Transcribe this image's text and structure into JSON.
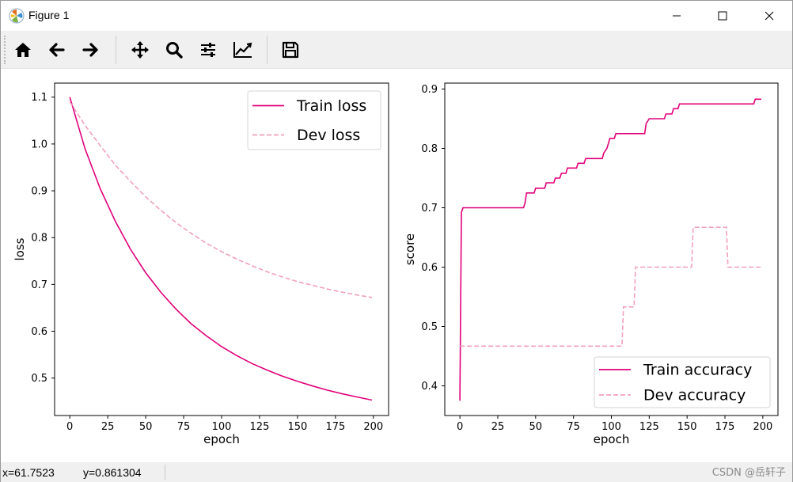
{
  "window": {
    "title": "Figure 1",
    "icons": [
      "app-icon",
      "minimize-icon",
      "maximize-icon",
      "close-icon"
    ]
  },
  "toolbar": {
    "tools": [
      {
        "name": "home",
        "icon": "home-icon"
      },
      {
        "name": "back",
        "icon": "arrow-left-icon"
      },
      {
        "name": "forward",
        "icon": "arrow-right-icon"
      },
      {
        "name": "pan",
        "icon": "move-icon"
      },
      {
        "name": "zoom",
        "icon": "magnifier-icon"
      },
      {
        "name": "subplots",
        "icon": "sliders-icon"
      },
      {
        "name": "axes",
        "icon": "line-chart-icon"
      },
      {
        "name": "save",
        "icon": "floppy-disk-icon"
      }
    ]
  },
  "status": {
    "x_text": "x=61.7523",
    "y_text": "y=0.861304",
    "watermark": "CSDN @岳轩子"
  },
  "colors": {
    "train": "#e0007a",
    "dev": "#f0a0bc",
    "toolbar_bg": "#f0f0f0"
  },
  "chart_data": [
    {
      "type": "line",
      "title": "",
      "xlabel": "epoch",
      "ylabel": "loss",
      "xlim": [
        -10,
        210
      ],
      "ylim": [
        0.42,
        1.13
      ],
      "xticks": [
        0,
        25,
        50,
        75,
        100,
        125,
        150,
        175,
        200
      ],
      "yticks": [
        0.5,
        0.6,
        0.7,
        0.8,
        0.9,
        1.0,
        1.1
      ],
      "ytick_labels": [
        "0.5",
        "0.6",
        "0.7",
        "0.8",
        "0.9",
        "1.0",
        "1.1"
      ],
      "grid": false,
      "legend": "top-right",
      "x": [
        0,
        10,
        20,
        30,
        40,
        50,
        60,
        70,
        80,
        90,
        100,
        110,
        120,
        130,
        140,
        150,
        160,
        170,
        180,
        190,
        199
      ],
      "series": [
        {
          "name": "Train loss",
          "style": "solid",
          "color": "#e0007a",
          "values": [
            1.1,
            0.99,
            0.905,
            0.835,
            0.775,
            0.725,
            0.683,
            0.647,
            0.616,
            0.59,
            0.567,
            0.548,
            0.531,
            0.517,
            0.504,
            0.493,
            0.483,
            0.474,
            0.466,
            0.459,
            0.453
          ]
        },
        {
          "name": "Dev loss",
          "style": "dashed",
          "color": "#f0a0bc",
          "values": [
            1.09,
            1.04,
            0.997,
            0.955,
            0.92,
            0.887,
            0.858,
            0.832,
            0.809,
            0.788,
            0.77,
            0.754,
            0.74,
            0.727,
            0.716,
            0.706,
            0.698,
            0.69,
            0.683,
            0.677,
            0.672
          ]
        }
      ]
    },
    {
      "type": "line",
      "title": "",
      "xlabel": "epoch",
      "ylabel": "score",
      "xlim": [
        -10,
        210
      ],
      "ylim": [
        0.35,
        0.91
      ],
      "xticks": [
        0,
        25,
        50,
        75,
        100,
        125,
        150,
        175,
        200
      ],
      "yticks": [
        0.4,
        0.5,
        0.6,
        0.7,
        0.8,
        0.9
      ],
      "ytick_labels": [
        "0.4",
        "0.5",
        "0.6",
        "0.7",
        "0.8",
        "0.9"
      ],
      "grid": false,
      "legend": "bottom-right",
      "series": [
        {
          "name": "Train accuracy",
          "style": "solid",
          "color": "#e0007a",
          "points": [
            [
              0,
              0.375
            ],
            [
              1,
              0.692
            ],
            [
              2,
              0.7
            ],
            [
              42,
              0.7
            ],
            [
              43,
              0.708
            ],
            [
              44,
              0.725
            ],
            [
              49,
              0.725
            ],
            [
              50,
              0.733
            ],
            [
              56,
              0.733
            ],
            [
              57,
              0.742
            ],
            [
              62,
              0.742
            ],
            [
              63,
              0.75
            ],
            [
              66,
              0.75
            ],
            [
              67,
              0.758
            ],
            [
              70,
              0.758
            ],
            [
              71,
              0.767
            ],
            [
              77,
              0.767
            ],
            [
              78,
              0.775
            ],
            [
              82,
              0.775
            ],
            [
              83,
              0.783
            ],
            [
              94,
              0.783
            ],
            [
              95,
              0.792
            ],
            [
              97,
              0.8
            ],
            [
              98,
              0.808
            ],
            [
              99,
              0.817
            ],
            [
              102,
              0.817
            ],
            [
              103,
              0.825
            ],
            [
              122,
              0.825
            ],
            [
              123,
              0.842
            ],
            [
              125,
              0.85
            ],
            [
              135,
              0.85
            ],
            [
              136,
              0.858
            ],
            [
              140,
              0.858
            ],
            [
              141,
              0.867
            ],
            [
              144,
              0.867
            ],
            [
              145,
              0.875
            ],
            [
              194,
              0.875
            ],
            [
              195,
              0.883
            ],
            [
              199,
              0.883
            ]
          ]
        },
        {
          "name": "Dev accuracy",
          "style": "dashed",
          "color": "#f0a0bc",
          "points": [
            [
              0,
              0.467
            ],
            [
              107,
              0.467
            ],
            [
              108,
              0.533
            ],
            [
              115,
              0.533
            ],
            [
              116,
              0.6
            ],
            [
              153,
              0.6
            ],
            [
              154,
              0.667
            ],
            [
              176,
              0.667
            ],
            [
              177,
              0.6
            ],
            [
              199,
              0.6
            ]
          ]
        }
      ]
    }
  ]
}
